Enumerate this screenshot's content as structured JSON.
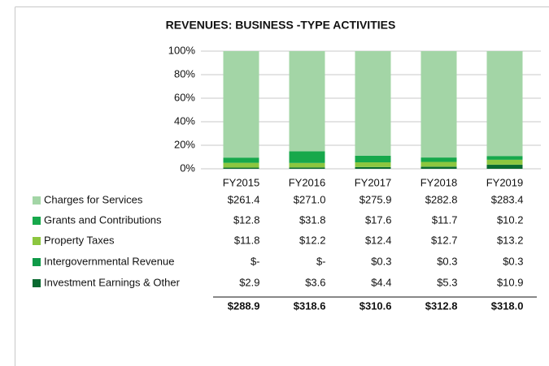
{
  "chart_data": {
    "type": "stacked_percent_bar",
    "title": "REVENUES: BUSINESS -TYPE ACTIVITIES",
    "categories": [
      "FY2015",
      "FY2016",
      "FY2017",
      "FY2018",
      "FY2019"
    ],
    "ylim": [
      0,
      100
    ],
    "yticks": [
      {
        "value": 0,
        "label": "0%"
      },
      {
        "value": 20,
        "label": "20%"
      },
      {
        "value": 40,
        "label": "40%"
      },
      {
        "value": 60,
        "label": "60%"
      },
      {
        "value": 80,
        "label": "80%"
      },
      {
        "value": 100,
        "label": "100%"
      }
    ],
    "grid": true,
    "series": [
      {
        "name": "Charges for Services",
        "color": "#a3d5a6",
        "values": [
          261.4,
          271.0,
          275.9,
          282.8,
          283.4
        ],
        "value_labels": [
          "$261.4",
          "$271.0",
          "$275.9",
          "$282.8",
          "$283.4"
        ]
      },
      {
        "name": "Grants and Contributions",
        "color": "#17a84b",
        "values": [
          12.8,
          31.8,
          17.6,
          11.7,
          10.2
        ],
        "value_labels": [
          "$12.8",
          "$31.8",
          "$17.6",
          "$11.7",
          "$10.2"
        ]
      },
      {
        "name": "Property Taxes",
        "color": "#8cc63f",
        "values": [
          11.8,
          12.2,
          12.4,
          12.7,
          13.2
        ],
        "value_labels": [
          "$11.8",
          "$12.2",
          "$12.4",
          "$12.7",
          "$13.2"
        ]
      },
      {
        "name": "Intergovernmental Revenue",
        "color": "#0f9a48",
        "values": [
          null,
          null,
          0.3,
          0.3,
          0.3
        ],
        "value_labels": [
          "$-",
          "$-",
          "$0.3",
          "$0.3",
          "$0.3"
        ]
      },
      {
        "name": "Investment Earnings & Other",
        "color": "#0a6a30",
        "values": [
          2.9,
          3.6,
          4.4,
          5.3,
          10.9
        ],
        "value_labels": [
          "$2.9",
          "$3.6",
          "$4.4",
          "$5.3",
          "$10.9"
        ]
      }
    ],
    "totals": [
      288.9,
      318.6,
      310.6,
      312.8,
      318.0
    ],
    "totals_labels": [
      "$288.9",
      "$318.6",
      "$310.6",
      "$312.8",
      "$318.0"
    ]
  }
}
